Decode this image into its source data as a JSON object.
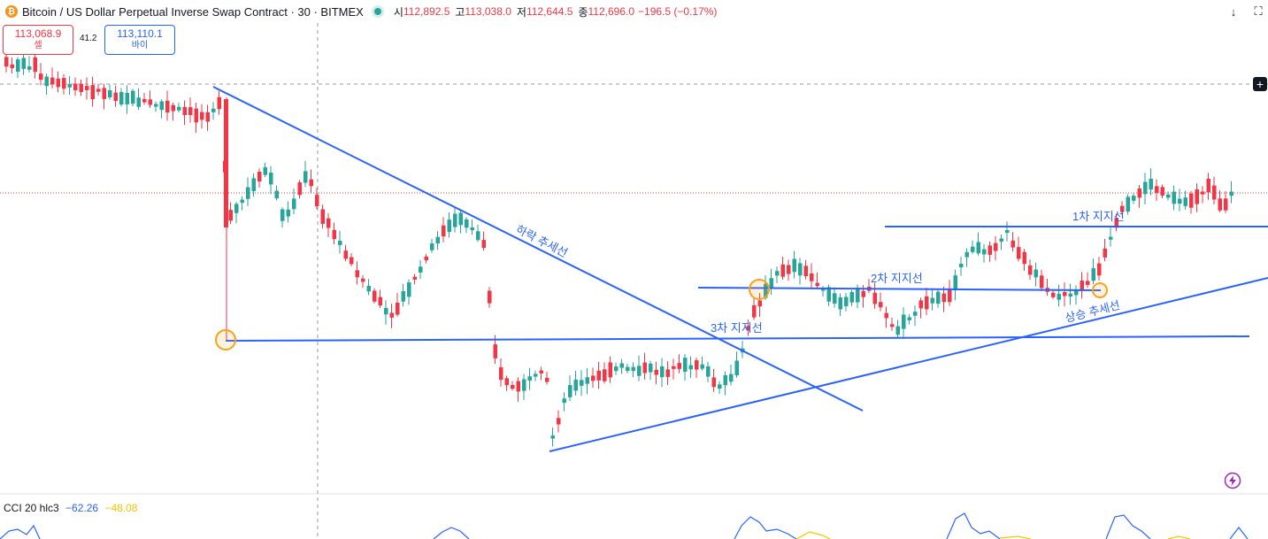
{
  "header": {
    "coin_symbol": "₿",
    "title": "Bitcoin / US Dollar Perpetual Inverse Swap Contract · 30 · BITMEX",
    "ohlc": [
      {
        "label": "시",
        "value": "112,892.5"
      },
      {
        "label": "고",
        "value": "113,038.0"
      },
      {
        "label": "저",
        "value": "112,644.5"
      },
      {
        "label": "종",
        "value": "112,696.0"
      }
    ],
    "change": "−196.5 (−0.17%)",
    "down_arrow": "↓",
    "fullscreen_icon": "⛶"
  },
  "trade": {
    "sell_price": "113,068.9",
    "sell_label": "셀",
    "spread": "41.2",
    "buy_price": "113,110.1",
    "buy_label": "바이"
  },
  "annotations": {
    "downtrend": "하락 추세선",
    "support1": "1차 지지선",
    "support2": "2차 지지선",
    "support3": "3차 지지선",
    "uptrend": "상승 추세선"
  },
  "indicator": {
    "name": "CCI 20 hlc3",
    "value1": "−62.26",
    "value2": "−48.08"
  },
  "colors": {
    "up": "#26a69a",
    "down": "#f23645",
    "trendline": "#2962ff",
    "marker": "#f7a21b"
  }
}
